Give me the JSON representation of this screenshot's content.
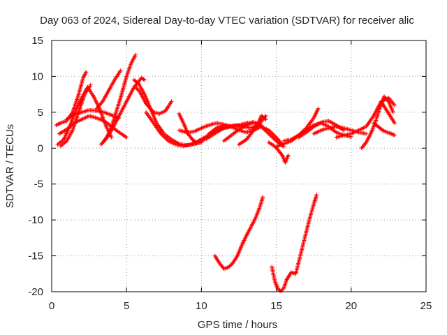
{
  "chart_data": {
    "type": "scatter",
    "title": "Day 063 of 2024, Sidereal Day-to-day VTEC variation (SDTVAR) for receiver alic",
    "xlabel": "GPS time / hours",
    "ylabel": "SDTVAR / TECUs",
    "xlim": [
      0,
      25
    ],
    "ylim": [
      -20,
      15
    ],
    "xticks": [
      0,
      5,
      10,
      15,
      20,
      25
    ],
    "yticks": [
      -20,
      -15,
      -10,
      -5,
      0,
      5,
      10,
      15
    ],
    "xtick_labels": [
      "0",
      "5",
      "10",
      "15",
      "20",
      "25"
    ],
    "ytick_labels": [
      "-20",
      "-15",
      "-10",
      "-5",
      "0",
      "5",
      "10",
      "15"
    ],
    "grid": true,
    "marker": "+",
    "color": "#ff0000",
    "series": [
      {
        "x": [
          0.3,
          0.6,
          1.0,
          1.4,
          1.8,
          2.1,
          2.3
        ],
        "y": [
          3.2,
          3.5,
          3.8,
          5.0,
          7.5,
          9.8,
          10.6
        ]
      },
      {
        "x": [
          0.4,
          0.8,
          1.2,
          1.6,
          2.0,
          2.4,
          2.8,
          3.2,
          3.6,
          4.0
        ],
        "y": [
          0.5,
          1.2,
          3.0,
          5.2,
          7.0,
          8.5,
          7.2,
          5.5,
          3.2,
          1.5
        ]
      },
      {
        "x": [
          0.5,
          1.0,
          1.5,
          2.0,
          2.5,
          3.0,
          3.5,
          4.0,
          4.5,
          5.0
        ],
        "y": [
          2.0,
          2.6,
          3.5,
          4.0,
          4.5,
          4.2,
          3.8,
          3.0,
          2.2,
          1.5
        ]
      },
      {
        "x": [
          0.6,
          1.0,
          1.4,
          1.8,
          2.2,
          2.6
        ],
        "y": [
          0.3,
          1.0,
          2.5,
          5.0,
          7.5,
          8.8
        ]
      },
      {
        "x": [
          1.0,
          1.5,
          2.0,
          2.5,
          3.0,
          3.5,
          4.0,
          4.5
        ],
        "y": [
          4.0,
          4.7,
          5.0,
          5.3,
          5.2,
          5.0,
          4.6,
          4.2
        ]
      },
      {
        "x": [
          3.3,
          3.7,
          4.0,
          4.3,
          4.6,
          4.8,
          5.0,
          5.3,
          5.6
        ],
        "y": [
          0.5,
          1.5,
          3.0,
          5.0,
          7.0,
          8.5,
          10.0,
          11.8,
          13.0
        ]
      },
      {
        "x": [
          3.0,
          3.4,
          3.8,
          4.2,
          4.6
        ],
        "y": [
          5.5,
          6.5,
          8.0,
          9.5,
          10.8
        ]
      },
      {
        "x": [
          3.5,
          4.0,
          4.5,
          5.0,
          5.5,
          6.0,
          6.2
        ],
        "y": [
          1.0,
          2.5,
          4.5,
          6.5,
          8.5,
          9.8,
          9.5
        ]
      },
      {
        "x": [
          5.5,
          5.8,
          6.2,
          6.6,
          7.0,
          7.5,
          8.0,
          8.5,
          9.0,
          9.5
        ],
        "y": [
          9.5,
          9.0,
          7.5,
          5.5,
          3.5,
          2.0,
          1.2,
          0.6,
          0.4,
          0.6
        ]
      },
      {
        "x": [
          5.6,
          5.9,
          6.3,
          6.8,
          7.2,
          7.6,
          8.0
        ],
        "y": [
          8.5,
          7.8,
          6.2,
          5.0,
          4.8,
          5.2,
          6.5
        ]
      },
      {
        "x": [
          6.3,
          6.8,
          7.3,
          7.8,
          8.3,
          8.8,
          9.3,
          9.8,
          10.3,
          10.8,
          11.3,
          11.8,
          12.3,
          12.8,
          13.3,
          13.8,
          14.3
        ],
        "y": [
          5.0,
          3.5,
          2.0,
          1.0,
          0.5,
          0.3,
          0.5,
          1.0,
          1.6,
          2.2,
          2.7,
          3.0,
          3.2,
          3.0,
          2.8,
          3.2,
          4.5
        ]
      },
      {
        "x": [
          8.5,
          9.0,
          9.5,
          10.0,
          10.5,
          11.0,
          11.5,
          12.0
        ],
        "y": [
          2.5,
          2.2,
          2.3,
          2.8,
          3.2,
          3.5,
          3.3,
          3.0
        ]
      },
      {
        "x": [
          8.5,
          8.8,
          9.1,
          9.4,
          9.7,
          10.0
        ],
        "y": [
          4.8,
          3.5,
          2.0,
          1.2,
          0.7,
          0.8
        ]
      },
      {
        "x": [
          9.5,
          10.0,
          10.5,
          11.0,
          11.5,
          12.0,
          12.5,
          13.0,
          13.5,
          14.0
        ],
        "y": [
          0.5,
          1.0,
          1.5,
          2.2,
          2.8,
          3.0,
          3.2,
          3.5,
          3.6,
          3.2
        ]
      },
      {
        "x": [
          10.5,
          11.0,
          11.5,
          12.0,
          12.5,
          13.0,
          13.5,
          14.0,
          14.5,
          15.0,
          15.4
        ],
        "y": [
          2.0,
          2.8,
          3.2,
          3.0,
          2.5,
          2.2,
          2.5,
          3.0,
          2.5,
          1.5,
          0.5
        ]
      },
      {
        "x": [
          11.5,
          12.0,
          12.5,
          13.0,
          13.5,
          14.0,
          14.5,
          15.0,
          15.5
        ],
        "y": [
          1.0,
          1.8,
          2.6,
          3.2,
          3.6,
          3.0,
          2.0,
          1.0,
          0.2
        ]
      },
      {
        "x": [
          12.5,
          13.0,
          13.5,
          13.8,
          14.0,
          14.3
        ],
        "y": [
          0.5,
          1.2,
          2.5,
          3.5,
          4.5,
          4.0
        ]
      },
      {
        "x": [
          14.5,
          14.8,
          15.1,
          15.4,
          15.6,
          15.8
        ],
        "y": [
          0.8,
          0.4,
          -0.2,
          -1.0,
          -2.0,
          -1.0
        ]
      },
      {
        "x": [
          15.0,
          15.5,
          16.0,
          16.5,
          17.0,
          17.5,
          17.8
        ],
        "y": [
          0.2,
          0.6,
          1.0,
          1.8,
          2.8,
          4.2,
          5.5
        ]
      },
      {
        "x": [
          15.5,
          16.0,
          16.5,
          17.0,
          17.5,
          18.0,
          18.5,
          19.0,
          19.5,
          20.0
        ],
        "y": [
          1.0,
          1.2,
          1.8,
          2.5,
          3.2,
          3.5,
          3.0,
          2.2,
          1.8,
          1.6
        ]
      },
      {
        "x": [
          16.5,
          17.0,
          17.5,
          18.0,
          18.5,
          19.0,
          19.5
        ],
        "y": [
          1.5,
          2.2,
          3.0,
          3.6,
          3.8,
          3.2,
          2.5
        ]
      },
      {
        "x": [
          17.5,
          18.0,
          18.5,
          19.0,
          19.5,
          20.0,
          20.5,
          21.0
        ],
        "y": [
          2.0,
          2.5,
          2.8,
          3.0,
          2.8,
          2.5,
          2.2,
          2.0
        ]
      },
      {
        "x": [
          19.0,
          19.5,
          20.0,
          20.5,
          21.0,
          21.5,
          22.0,
          22.5,
          22.9
        ],
        "y": [
          1.5,
          1.8,
          2.0,
          2.5,
          3.0,
          4.5,
          6.5,
          7.0,
          6.0
        ]
      },
      {
        "x": [
          20.7,
          21.0,
          21.3,
          21.6,
          21.9,
          22.2,
          22.5,
          22.8
        ],
        "y": [
          0.0,
          0.8,
          2.0,
          3.5,
          5.5,
          7.2,
          6.5,
          5.0
        ]
      },
      {
        "x": [
          21.5,
          21.8,
          22.1,
          22.4,
          22.7,
          22.9
        ],
        "y": [
          3.5,
          3.0,
          2.5,
          2.2,
          2.0,
          1.8
        ]
      },
      {
        "x": [
          22.0,
          22.3,
          22.6,
          22.9
        ],
        "y": [
          6.5,
          5.5,
          4.5,
          3.5
        ]
      },
      {
        "x": [
          10.9,
          11.2,
          11.5,
          11.8,
          12.1,
          12.4,
          12.7,
          13.0,
          13.3,
          13.6,
          13.9,
          14.1
        ],
        "y": [
          -15.0,
          -16.0,
          -16.8,
          -16.6,
          -16.0,
          -15.0,
          -13.5,
          -12.2,
          -11.0,
          -9.8,
          -8.2,
          -6.8
        ]
      },
      {
        "x": [
          14.7,
          14.9,
          15.1,
          15.3,
          15.5,
          15.7,
          16.0,
          16.3,
          16.6,
          16.9,
          17.2,
          17.5,
          17.7
        ],
        "y": [
          -16.5,
          -18.5,
          -19.6,
          -19.9,
          -19.5,
          -18.3,
          -17.3,
          -17.5,
          -15.0,
          -12.5,
          -10.0,
          -7.8,
          -6.5
        ]
      }
    ]
  }
}
